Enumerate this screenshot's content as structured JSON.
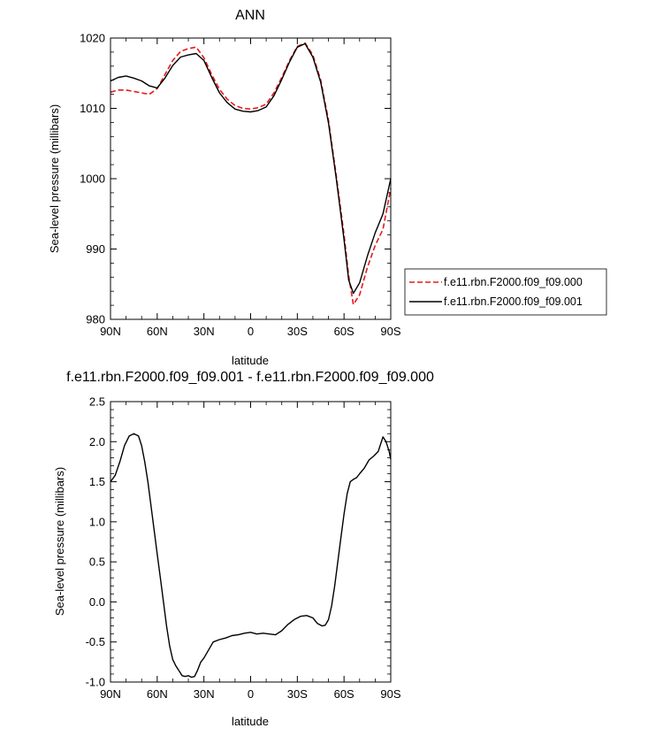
{
  "chart_data": [
    {
      "type": "line",
      "title": "ANN",
      "xlabel": "latitude",
      "ylabel": "Sea-level pressure (millibars)",
      "xlim": [
        90,
        -90
      ],
      "ylim": [
        980,
        1020
      ],
      "x_ticks": [
        90,
        60,
        30,
        0,
        -30,
        -60,
        -90
      ],
      "x_tick_labels": [
        "90N",
        "60N",
        "30N",
        "0",
        "30S",
        "60S",
        "90S"
      ],
      "y_ticks": [
        980,
        990,
        1000,
        1010,
        1020
      ],
      "y_tick_labels": [
        "980",
        "990",
        "1000",
        "1010",
        "1020"
      ],
      "legend_position": "right",
      "series": [
        {
          "name": "f.e11.rbn.F2000.f09_f09.000",
          "color": "#e41a1c",
          "dash": "dashed",
          "x": [
            90,
            85,
            80,
            75,
            70,
            65,
            60,
            55,
            50,
            45,
            40,
            35,
            30,
            25,
            20,
            15,
            10,
            5,
            0,
            -5,
            -10,
            -15,
            -20,
            -25,
            -30,
            -35,
            -40,
            -45,
            -50,
            -55,
            -60,
            -63,
            -66,
            -70,
            -75,
            -80,
            -85,
            -90
          ],
          "y": [
            1012.3,
            1012.6,
            1012.6,
            1012.4,
            1012.2,
            1012.0,
            1012.8,
            1014.8,
            1016.8,
            1018.1,
            1018.5,
            1018.7,
            1017.2,
            1014.8,
            1012.7,
            1011.3,
            1010.4,
            1010.0,
            1009.9,
            1010.1,
            1010.6,
            1012.2,
            1014.4,
            1016.8,
            1018.8,
            1019.3,
            1017.6,
            1014.0,
            1008.3,
            1000.4,
            992.0,
            986.2,
            982.1,
            983.5,
            987.4,
            990.5,
            992.8,
            998.6
          ]
        },
        {
          "name": "f.e11.rbn.F2000.f09_f09.001",
          "color": "#000000",
          "dash": "solid",
          "x": [
            90,
            85,
            80,
            75,
            70,
            65,
            60,
            55,
            50,
            45,
            40,
            35,
            30,
            25,
            20,
            15,
            10,
            5,
            0,
            -5,
            -10,
            -15,
            -20,
            -25,
            -30,
            -35,
            -40,
            -45,
            -50,
            -55,
            -60,
            -63,
            -66,
            -70,
            -75,
            -80,
            -85,
            -90
          ],
          "y": [
            1013.9,
            1014.4,
            1014.6,
            1014.3,
            1013.9,
            1013.2,
            1012.9,
            1014.3,
            1016.1,
            1017.3,
            1017.6,
            1017.8,
            1016.8,
            1014.4,
            1012.2,
            1010.8,
            1009.9,
            1009.6,
            1009.5,
            1009.7,
            1010.2,
            1011.8,
            1014.1,
            1016.6,
            1018.7,
            1019.2,
            1017.3,
            1013.7,
            1007.9,
            1000.0,
            991.3,
            985.6,
            983.7,
            985.2,
            989.0,
            992.3,
            995.0,
            1000.0
          ]
        }
      ]
    },
    {
      "type": "line",
      "title": "f.e11.rbn.F2000.f09_f09.001 - f.e11.rbn.F2000.f09_f09.000",
      "xlabel": "latitude",
      "ylabel": "Sea-level pressure (millibars)",
      "xlim": [
        90,
        -90
      ],
      "ylim": [
        -1.0,
        2.5
      ],
      "x_ticks": [
        90,
        60,
        30,
        0,
        -30,
        -60,
        -90
      ],
      "x_tick_labels": [
        "90N",
        "60N",
        "30N",
        "0",
        "30S",
        "60S",
        "90S"
      ],
      "y_ticks": [
        -1.0,
        -0.5,
        0.0,
        0.5,
        1.0,
        1.5,
        2.0,
        2.5
      ],
      "y_tick_labels": [
        "-1.0",
        "-0.5",
        "0.0",
        "0.5",
        "1.0",
        "1.5",
        "2.0",
        "2.5"
      ],
      "series": [
        {
          "color": "#000000",
          "dash": "solid",
          "x": [
            90,
            87,
            84,
            81,
            78,
            75,
            72,
            70,
            68,
            66,
            64,
            62,
            60,
            58,
            56,
            54,
            52,
            50,
            48,
            46,
            44,
            42,
            40,
            38,
            36,
            34,
            32,
            30,
            27,
            24,
            20,
            16,
            12,
            8,
            4,
            0,
            -4,
            -8,
            -12,
            -16,
            -20,
            -24,
            -28,
            -32,
            -36,
            -40,
            -43,
            -46,
            -48,
            -50,
            -52,
            -54,
            -56,
            -58,
            -60,
            -62,
            -64,
            -66,
            -68,
            -70,
            -73,
            -76,
            -79,
            -82,
            -85,
            -87,
            -89,
            -90
          ],
          "y": [
            1.5,
            1.58,
            1.75,
            1.95,
            2.07,
            2.1,
            2.07,
            1.95,
            1.75,
            1.5,
            1.2,
            0.9,
            0.6,
            0.3,
            0.0,
            -0.3,
            -0.55,
            -0.72,
            -0.8,
            -0.86,
            -0.92,
            -0.93,
            -0.92,
            -0.94,
            -0.93,
            -0.85,
            -0.75,
            -0.7,
            -0.6,
            -0.5,
            -0.47,
            -0.45,
            -0.42,
            -0.41,
            -0.39,
            -0.38,
            -0.4,
            -0.39,
            -0.4,
            -0.41,
            -0.36,
            -0.28,
            -0.22,
            -0.18,
            -0.17,
            -0.2,
            -0.27,
            -0.3,
            -0.29,
            -0.22,
            -0.05,
            0.2,
            0.5,
            0.8,
            1.1,
            1.35,
            1.5,
            1.53,
            1.55,
            1.6,
            1.67,
            1.77,
            1.82,
            1.88,
            2.06,
            2.0,
            1.88,
            1.78
          ]
        }
      ]
    }
  ]
}
